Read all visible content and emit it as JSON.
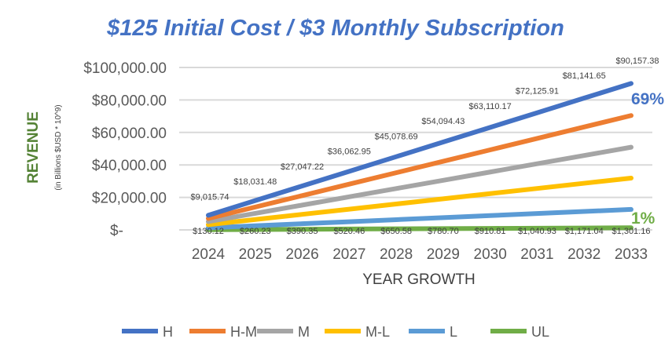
{
  "chart_data": {
    "type": "line",
    "title": "$125 Initial Cost / $3 Monthly Subscription",
    "xlabel": "YEAR GROWTH",
    "ylabel": "REVENUE",
    "ylabel_sub": "(in Billions $USD * 10^9)",
    "categories": [
      "2024",
      "2025",
      "2026",
      "2027",
      "2028",
      "2029",
      "2030",
      "2031",
      "2032",
      "2033"
    ],
    "ylim": [
      0,
      100000
    ],
    "yticks": [
      0,
      20000,
      40000,
      60000,
      80000,
      100000
    ],
    "ytick_labels": [
      "$-",
      "$20,000.00",
      "$40,000.00",
      "$60,000.00",
      "$80,000.00",
      "$100,000.00"
    ],
    "grid": true,
    "legend_position": "bottom",
    "series": [
      {
        "name": "H",
        "color": "#4472C4",
        "values": [
          9015.74,
          18031.48,
          27047.22,
          36062.95,
          45078.69,
          54094.43,
          63110.17,
          72125.91,
          81141.65,
          90157.38
        ],
        "labels": [
          "$9,015.74",
          "$18,031.48",
          "$27,047.22",
          "$36,062.95",
          "$45,078.69",
          "$54,094.43",
          "$63,110.17",
          "$72,125.91",
          "$81,141.65",
          "$90,157.38"
        ]
      },
      {
        "name": "H-M",
        "color": "#ED7D31",
        "values": [
          7040,
          14080,
          21120,
          28160,
          35200,
          42240,
          49280,
          56320,
          63360,
          70400
        ]
      },
      {
        "name": "M",
        "color": "#A5A5A5",
        "values": [
          5090,
          10180,
          15270,
          20360,
          25450,
          30540,
          35630,
          40720,
          45810,
          50900
        ]
      },
      {
        "name": "M-L",
        "color": "#FFC000",
        "values": [
          3190,
          6380,
          9570,
          12760,
          15950,
          19140,
          22330,
          25520,
          28710,
          31900
        ]
      },
      {
        "name": "L",
        "color": "#5B9BD5",
        "values": [
          1260,
          2520,
          3780,
          5040,
          6300,
          7560,
          8820,
          10080,
          11340,
          12600
        ]
      },
      {
        "name": "UL",
        "color": "#70AD47",
        "values": [
          130.12,
          260.23,
          390.35,
          520.46,
          650.58,
          780.7,
          910.81,
          1040.93,
          1171.04,
          1301.16
        ],
        "labels": [
          "$130.12",
          "$260.23",
          "$390.35",
          "$520.46",
          "$650.58",
          "$780.70",
          "$910.81",
          "$1,040.93",
          "$1,171.04",
          "$1,301.16"
        ]
      }
    ],
    "annotations": [
      {
        "text": "69%",
        "series": "H",
        "color": "#4472C4"
      },
      {
        "text": "1%",
        "series": "UL",
        "color": "#70AD47"
      }
    ]
  }
}
